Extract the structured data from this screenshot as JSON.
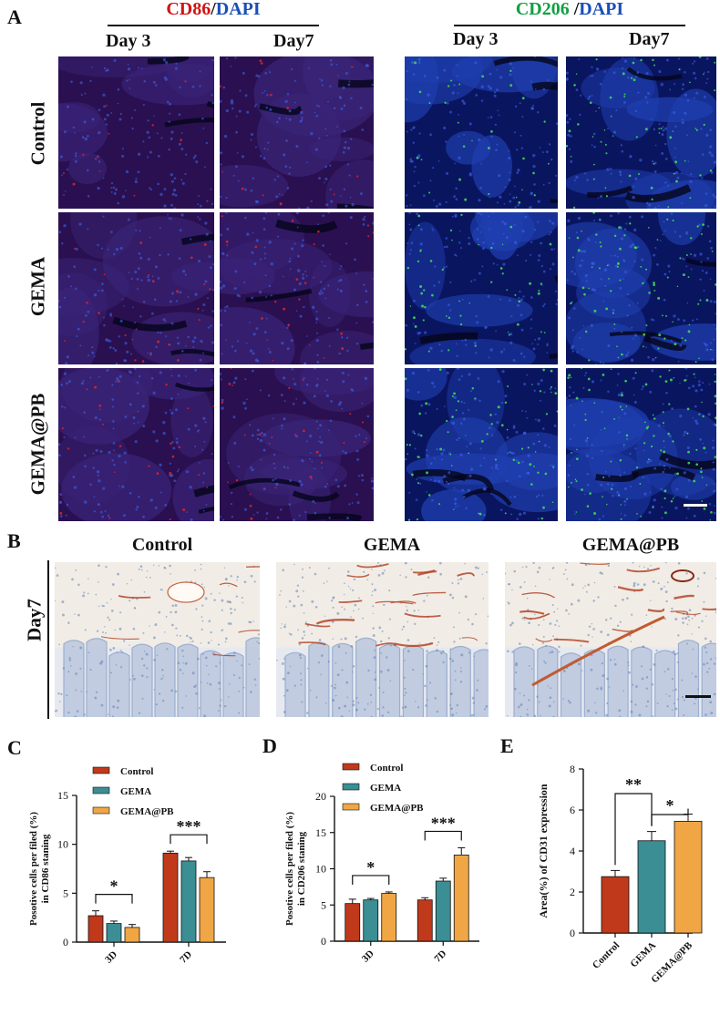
{
  "panelA": {
    "letter": "A",
    "left_group": {
      "marker": "CD86",
      "sep": "/",
      "counter": "DAPI",
      "marker_color": "#d01414",
      "counter_color": "#1a4fb8"
    },
    "right_group": {
      "marker": "CD206",
      "sep": " /",
      "counter": "DAPI",
      "marker_color": "#10a040",
      "counter_color": "#1a4fb8"
    },
    "day_headers": [
      "Day 3",
      "Day7",
      "Day 3",
      "Day7"
    ],
    "rows": [
      "Control",
      "GEMA",
      "GEMA@PB"
    ]
  },
  "panelB": {
    "letter": "B",
    "columns": [
      "Control",
      "GEMA",
      "GEMA@PB"
    ],
    "row_label": "Day7"
  },
  "chart_data": [
    {
      "letter": "C",
      "type": "bar",
      "categories": [
        "3D",
        "7D"
      ],
      "series": [
        {
          "name": "Control",
          "color": "#c0391b",
          "values": [
            2.7,
            9.1
          ],
          "err": [
            0.5,
            0.2
          ]
        },
        {
          "name": "GEMA",
          "color": "#3a8e94",
          "values": [
            1.9,
            8.3
          ],
          "err": [
            0.25,
            0.35
          ]
        },
        {
          "name": "GEMA@PB",
          "color": "#f0a644",
          "values": [
            1.5,
            6.6
          ],
          "err": [
            0.3,
            0.6
          ]
        }
      ],
      "ylabel": "Posotive cells per filed (%)",
      "ylabel2": "in CD86 staning",
      "ylim": [
        0,
        15
      ],
      "yticks": [
        "0",
        "5",
        "10",
        "15"
      ],
      "significance": [
        {
          "text": "*",
          "category": "3D",
          "from": "Control",
          "to": "GEMA@PB"
        },
        {
          "text": "***",
          "category": "7D",
          "from": "Control",
          "to": "GEMA@PB"
        }
      ]
    },
    {
      "letter": "D",
      "type": "bar",
      "categories": [
        "3D",
        "7D"
      ],
      "series": [
        {
          "name": "Control",
          "color": "#c0391b",
          "values": [
            5.2,
            5.7
          ],
          "err": [
            0.6,
            0.3
          ]
        },
        {
          "name": "GEMA",
          "color": "#3a8e94",
          "values": [
            5.7,
            8.3
          ],
          "err": [
            0.2,
            0.4
          ]
        },
        {
          "name": "GEMA@PB",
          "color": "#f0a644",
          "values": [
            6.6,
            11.9
          ],
          "err": [
            0.2,
            1.0
          ]
        }
      ],
      "ylabel": "Posotive cells per filed (%)",
      "ylabel2": "in CD206 staning",
      "ylim": [
        0,
        20
      ],
      "yticks": [
        "0",
        "5",
        "10",
        "15",
        "20"
      ],
      "significance": [
        {
          "text": "*",
          "category": "3D",
          "from": "Control",
          "to": "GEMA@PB"
        },
        {
          "text": "***",
          "category": "7D",
          "from": "Control",
          "to": "GEMA@PB"
        }
      ]
    },
    {
      "letter": "E",
      "type": "bar",
      "categories": [
        "Control",
        "GEMA",
        "GEMA@PB"
      ],
      "values": [
        2.75,
        4.5,
        5.45
      ],
      "err": [
        0.3,
        0.45,
        0.35
      ],
      "colors": [
        "#c0391b",
        "#3a8e94",
        "#f0a644"
      ],
      "ylabel": "Area(%) of CD31 expression",
      "ylim": [
        0,
        8
      ],
      "yticks": [
        "0",
        "2",
        "4",
        "6",
        "8"
      ],
      "significance": [
        {
          "text": "**",
          "from": "Control",
          "to": "GEMA"
        },
        {
          "text": "*",
          "from": "GEMA",
          "to": "GEMA@PB"
        }
      ]
    }
  ]
}
